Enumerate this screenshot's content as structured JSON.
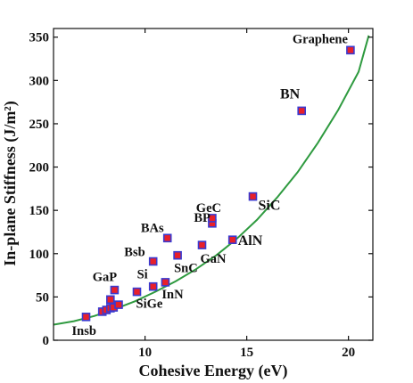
{
  "chart_data": {
    "type": "scatter",
    "xlabel": "Cohesive Energy (eV)",
    "ylabel": "In-plane Stiffness (J/m²)",
    "xlim": [
      5.5,
      21.2
    ],
    "ylim": [
      0,
      360
    ],
    "xticks": [
      10,
      15,
      20
    ],
    "yticks": [
      0,
      50,
      100,
      150,
      200,
      250,
      300,
      350
    ],
    "grid": false,
    "marker": {
      "fill": "#e8202a",
      "edge": "#3a3ad0",
      "shape": "square"
    },
    "fit_color": "#2e9a3f",
    "points": [
      {
        "label": "Insb",
        "x": 7.1,
        "y": 27
      },
      {
        "label": "",
        "x": 7.9,
        "y": 33
      },
      {
        "label": "",
        "x": 8.1,
        "y": 35
      },
      {
        "label": "",
        "x": 8.3,
        "y": 37
      },
      {
        "label": "",
        "x": 8.45,
        "y": 38
      },
      {
        "label": "",
        "x": 8.7,
        "y": 41
      },
      {
        "label": "",
        "x": 8.3,
        "y": 47
      },
      {
        "label": "GaP",
        "x": 8.5,
        "y": 58
      },
      {
        "label": "SiGe",
        "x": 9.6,
        "y": 56
      },
      {
        "label": "Si",
        "x": 10.4,
        "y": 62
      },
      {
        "label": "InN",
        "x": 11.0,
        "y": 67
      },
      {
        "label": "Bsb",
        "x": 10.4,
        "y": 91
      },
      {
        "label": "SnC",
        "x": 11.6,
        "y": 98
      },
      {
        "label": "BAs",
        "x": 11.1,
        "y": 118
      },
      {
        "label": "GaN",
        "x": 12.8,
        "y": 110
      },
      {
        "label": "BP",
        "x": 13.3,
        "y": 135
      },
      {
        "label": "GeC",
        "x": 13.3,
        "y": 141
      },
      {
        "label": "AlN",
        "x": 14.3,
        "y": 116
      },
      {
        "label": "SiC",
        "x": 15.3,
        "y": 166
      },
      {
        "label": "BN",
        "x": 17.7,
        "y": 265
      },
      {
        "label": "Graphene",
        "x": 20.1,
        "y": 335
      }
    ],
    "fit_curve": {
      "x": [
        5.5,
        6.5,
        7.5,
        8.5,
        9.5,
        10.5,
        11.5,
        12.5,
        13.5,
        14.5,
        15.5,
        16.5,
        17.5,
        18.5,
        19.5,
        20.5,
        21.0
      ],
      "y": [
        18,
        22,
        28,
        36,
        45,
        56,
        68,
        82,
        98,
        117,
        139,
        165,
        194,
        228,
        266,
        310,
        352
      ]
    }
  }
}
